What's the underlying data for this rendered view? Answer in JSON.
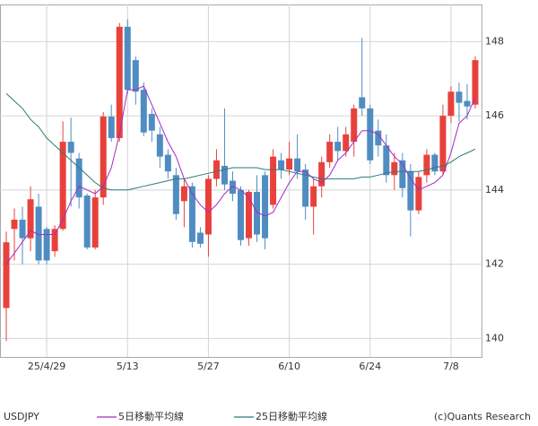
{
  "chart_data": {
    "type": "candlestick",
    "title": "USDJPY",
    "credit": "(c)Quants Research",
    "categories": [
      null,
      null,
      null,
      null,
      null,
      "25/4/29",
      null,
      null,
      null,
      null,
      null,
      null,
      null,
      null,
      null,
      "5/13",
      null,
      null,
      null,
      null,
      null,
      null,
      null,
      null,
      null,
      "5/27",
      null,
      null,
      null,
      null,
      null,
      null,
      null,
      null,
      null,
      "6/10",
      null,
      null,
      null,
      null,
      null,
      null,
      null,
      null,
      null,
      "6/24",
      null,
      null,
      null,
      null,
      null,
      null,
      null,
      null,
      null,
      "7/8",
      null,
      null,
      null
    ],
    "open": [
      140.82,
      142.95,
      143.2,
      142.7,
      143.55,
      142.95,
      142.35,
      142.95,
      145.3,
      144.85,
      143.85,
      142.45,
      143.8,
      145.98,
      145.4,
      148.4,
      147.5,
      146.7,
      146.05,
      145.5,
      144.95,
      144.4,
      143.7,
      144.1,
      142.85,
      142.8,
      144.3,
      144.65,
      144.25,
      144.0,
      142.7,
      143.95,
      144.4,
      143.6,
      144.8,
      144.55,
      144.85,
      144.55,
      143.55,
      144.1,
      144.75,
      145.3,
      145.05,
      145.3,
      146.5,
      146.2,
      145.6,
      145.2,
      144.4,
      144.8,
      144.5,
      143.45,
      144.4,
      144.95,
      144.5,
      146.0,
      146.65,
      146.4,
      146.3
    ],
    "high": [
      142.88,
      143.5,
      143.55,
      144.1,
      143.9,
      143.0,
      143.05,
      145.85,
      145.95,
      145.0,
      143.9,
      144.0,
      146.1,
      146.3,
      148.5,
      148.6,
      147.6,
      146.9,
      146.2,
      145.7,
      145.1,
      144.6,
      144.3,
      144.2,
      143.0,
      144.4,
      145.1,
      146.2,
      144.5,
      144.1,
      144.0,
      144.4,
      144.5,
      145.1,
      145.0,
      145.3,
      145.5,
      144.7,
      144.3,
      144.9,
      145.5,
      145.7,
      145.7,
      146.3,
      148.1,
      146.3,
      145.9,
      145.5,
      145.0,
      145.0,
      144.7,
      144.5,
      145.1,
      145.0,
      146.3,
      146.8,
      146.9,
      146.85,
      147.6
    ],
    "low": [
      139.93,
      142.1,
      142.0,
      142.35,
      142.0,
      142.0,
      142.2,
      142.9,
      143.55,
      143.5,
      142.4,
      142.4,
      143.6,
      145.3,
      145.3,
      146.6,
      146.3,
      145.45,
      145.3,
      144.6,
      144.3,
      143.2,
      143.0,
      142.45,
      142.45,
      142.2,
      144.1,
      144.0,
      143.7,
      142.5,
      142.5,
      142.6,
      142.4,
      143.5,
      144.3,
      144.4,
      144.3,
      143.2,
      142.8,
      143.8,
      144.6,
      144.8,
      144.9,
      144.9,
      146.0,
      144.7,
      144.9,
      144.2,
      144.0,
      143.8,
      142.75,
      143.35,
      144.2,
      144.4,
      144.4,
      145.8,
      145.85,
      145.9,
      146.2
    ],
    "close": [
      142.59,
      143.2,
      142.7,
      143.75,
      142.1,
      142.1,
      142.95,
      145.3,
      145.0,
      143.8,
      142.45,
      143.8,
      145.98,
      145.4,
      148.4,
      146.7,
      146.65,
      145.55,
      145.6,
      144.9,
      144.5,
      143.35,
      144.1,
      142.6,
      142.55,
      144.3,
      144.8,
      144.15,
      143.9,
      142.65,
      143.95,
      142.8,
      142.7,
      144.9,
      144.55,
      144.85,
      144.5,
      143.55,
      144.1,
      144.75,
      145.3,
      145.05,
      145.5,
      146.2,
      146.2,
      144.8,
      145.2,
      144.4,
      144.75,
      144.05,
      143.45,
      144.35,
      144.95,
      144.5,
      146.0,
      146.65,
      146.35,
      146.25,
      147.5
    ],
    "up_color": "#e8413c",
    "down_color": "#4f8cc2",
    "series": [
      {
        "name": "5日移動平均線",
        "color": "#a32cc4",
        "values": [
          142.0,
          142.3,
          142.6,
          142.9,
          142.8,
          142.8,
          142.8,
          143.2,
          143.7,
          144.1,
          144.0,
          143.9,
          144.1,
          144.6,
          145.5,
          146.7,
          146.7,
          146.8,
          146.3,
          145.8,
          145.3,
          144.9,
          144.3,
          143.9,
          143.6,
          143.4,
          143.6,
          143.9,
          144.1,
          144.0,
          143.8,
          143.4,
          143.3,
          143.4,
          143.8,
          144.2,
          144.5,
          144.5,
          144.3,
          144.2,
          144.4,
          144.8,
          145.0,
          145.3,
          145.6,
          145.6,
          145.5,
          145.2,
          144.9,
          144.7,
          144.3,
          144.0,
          144.1,
          144.2,
          144.4,
          145.0,
          145.8,
          146.0,
          146.5
        ]
      },
      {
        "name": "25日移動平均線",
        "color": "#2c7a7a",
        "values": [
          146.6,
          146.4,
          146.2,
          145.9,
          145.7,
          145.4,
          145.2,
          145.0,
          144.8,
          144.6,
          144.4,
          144.2,
          144.05,
          144.0,
          144.0,
          144.0,
          144.05,
          144.1,
          144.15,
          144.2,
          144.25,
          144.3,
          144.3,
          144.35,
          144.4,
          144.45,
          144.5,
          144.55,
          144.6,
          144.6,
          144.6,
          144.6,
          144.55,
          144.55,
          144.55,
          144.5,
          144.45,
          144.4,
          144.35,
          144.3,
          144.3,
          144.3,
          144.3,
          144.3,
          144.35,
          144.35,
          144.4,
          144.45,
          144.5,
          144.5,
          144.5,
          144.5,
          144.55,
          144.6,
          144.65,
          144.75,
          144.9,
          145.0,
          145.1
        ]
      }
    ],
    "ylim": [
      139.5,
      149
    ],
    "yticks": [
      140,
      142,
      144,
      146,
      148
    ],
    "grid": true
  }
}
